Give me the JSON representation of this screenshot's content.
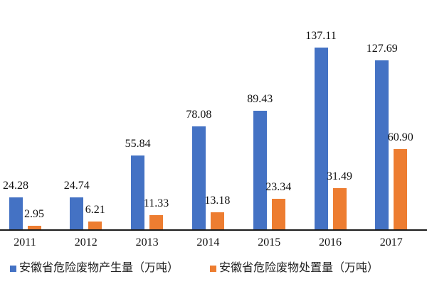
{
  "chart_data": {
    "type": "bar",
    "title": "",
    "xlabel": "",
    "ylabel": "",
    "categories": [
      "2011",
      "2012",
      "2013",
      "2014",
      "2015",
      "2016",
      "2017"
    ],
    "series": [
      {
        "name": "安徽省危险废物产生量（万吨）",
        "key": "production",
        "color": "#4472C4",
        "values": [
          24.28,
          24.74,
          55.84,
          78.08,
          89.43,
          137.11,
          127.69
        ]
      },
      {
        "name": "安徽省危险废物处置量（万吨）",
        "key": "disposal",
        "color": "#ED7D31",
        "values": [
          2.95,
          6.21,
          11.33,
          13.18,
          23.34,
          31.49,
          60.9
        ]
      }
    ],
    "ylim": [
      0,
      145
    ],
    "grid": false,
    "y_axis_visible": false,
    "data_labels": true,
    "label_decimals": 2,
    "legend_position": "bottom",
    "axis_color": "#1a1a1a",
    "text_color": "#111111"
  }
}
